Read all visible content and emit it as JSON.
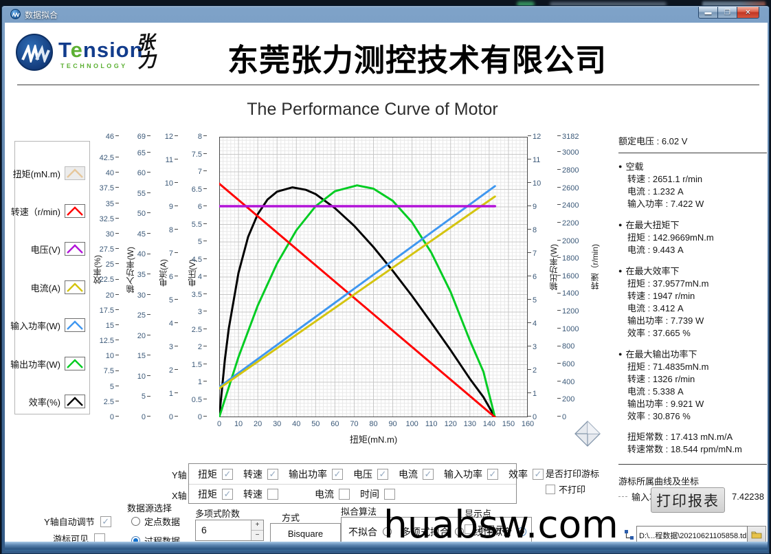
{
  "window": {
    "title": "数据拟合"
  },
  "header": {
    "brand": "Tensi",
    "brand_green_e": "e",
    "brand_tail": "nsion",
    "brand_display": "Tension",
    "brand_sub": "TECHNOLOGY",
    "brand_cn": "张力",
    "company": "东莞张力测控技术有限公司"
  },
  "chart_data": {
    "type": "line",
    "title": "The Performance Curve of Motor",
    "xlabel": "扭矩(mN.m)",
    "xlim": [
      0,
      160
    ],
    "x_ticks": [
      0,
      10,
      20,
      30,
      40,
      50,
      60,
      70,
      80,
      90,
      100,
      110,
      120,
      130,
      140,
      150,
      160
    ],
    "grid": true,
    "legend_position": "left",
    "axes": [
      {
        "id": "eff",
        "label": "效率(%)",
        "side": "left",
        "max": 46,
        "ticks": [
          46,
          42.5,
          40,
          37.5,
          35,
          32.5,
          30,
          27.5,
          25,
          22.5,
          20,
          17.5,
          15,
          12.5,
          10,
          7.5,
          5,
          2.5,
          0
        ]
      },
      {
        "id": "pin",
        "label": "输入功率(W)",
        "side": "left",
        "max": 69,
        "ticks": [
          69,
          65,
          60,
          55,
          50,
          45,
          40,
          35,
          30,
          25,
          20,
          15,
          10,
          5,
          0
        ]
      },
      {
        "id": "cur",
        "label": "电流(A)",
        "side": "left",
        "max": 12,
        "ticks": [
          12,
          11,
          10,
          9,
          8,
          7,
          6,
          5,
          4,
          3,
          2,
          1,
          0
        ]
      },
      {
        "id": "volt",
        "label": "电压(V)",
        "side": "left",
        "max": 8,
        "ticks": [
          8,
          7.5,
          7,
          6.5,
          6,
          5.5,
          5,
          4.5,
          4,
          3.5,
          3,
          2.5,
          2,
          1.5,
          1,
          0.5,
          0
        ]
      },
      {
        "id": "pout",
        "label": "输出功率(W)",
        "side": "right",
        "max": 12,
        "ticks": [
          12,
          11,
          10,
          9,
          8,
          7,
          6,
          5,
          4,
          3,
          2,
          1,
          0
        ]
      },
      {
        "id": "speed",
        "label": "转速（r/min)",
        "side": "right",
        "max": 3182,
        "ticks": [
          3182,
          3000,
          2800,
          2600,
          2400,
          2200,
          2000,
          1800,
          1600,
          1400,
          1200,
          1000,
          800,
          600,
          400,
          200,
          0
        ]
      }
    ],
    "series": [
      {
        "name": "效率",
        "axis": "eff",
        "color": "#000000",
        "width": 3,
        "points": [
          [
            0,
            0
          ],
          [
            3,
            9.6
          ],
          [
            5,
            14.6
          ],
          [
            10,
            23.7
          ],
          [
            15,
            29.6
          ],
          [
            20,
            33.3
          ],
          [
            25,
            35.7
          ],
          [
            30,
            37.0
          ],
          [
            38,
            37.7
          ],
          [
            45,
            37.3
          ],
          [
            50,
            36.6
          ],
          [
            60,
            34.3
          ],
          [
            70,
            31.4
          ],
          [
            80,
            27.9
          ],
          [
            90,
            24.0
          ],
          [
            100,
            19.9
          ],
          [
            110,
            15.5
          ],
          [
            120,
            11.0
          ],
          [
            130,
            6.3
          ],
          [
            137,
            3.3
          ],
          [
            143,
            0
          ]
        ]
      },
      {
        "name": "输出功率",
        "axis": "pout",
        "color": "#00cc22",
        "width": 3,
        "points": [
          [
            0,
            0
          ],
          [
            10,
            2.58
          ],
          [
            20,
            4.78
          ],
          [
            30,
            6.58
          ],
          [
            40,
            8.0
          ],
          [
            50,
            9.03
          ],
          [
            60,
            9.67
          ],
          [
            71.5,
            9.92
          ],
          [
            80,
            9.78
          ],
          [
            90,
            9.26
          ],
          [
            100,
            8.34
          ],
          [
            110,
            7.04
          ],
          [
            120,
            5.36
          ],
          [
            130,
            3.28
          ],
          [
            137,
            1.95
          ],
          [
            143,
            0
          ]
        ]
      },
      {
        "name": "转速",
        "axis": "speed",
        "color": "#ff0000",
        "width": 3,
        "points": [
          [
            0,
            2651.1
          ],
          [
            143,
            0
          ]
        ]
      },
      {
        "name": "输入功率",
        "axis": "pin",
        "color": "#3f97f0",
        "width": 3,
        "points": [
          [
            0,
            7.42
          ],
          [
            143,
            56.85
          ]
        ]
      },
      {
        "name": "电流",
        "axis": "cur",
        "color": "#d4c410",
        "width": 3,
        "points": [
          [
            0,
            1.232
          ],
          [
            143,
            9.443
          ]
        ]
      },
      {
        "name": "电压",
        "axis": "volt",
        "color": "#b214d8",
        "width": 3.5,
        "points": [
          [
            0,
            6.02
          ],
          [
            143,
            6.02
          ]
        ]
      }
    ]
  },
  "legend": {
    "items": [
      {
        "label": "扭矩(mN.m)",
        "color": "#e6c79b",
        "disabled": true
      },
      {
        "label": "转速（r/min)",
        "color": "#ff0000",
        "disabled": false
      },
      {
        "label": "电压(V)",
        "color": "#b214d8",
        "disabled": false
      },
      {
        "label": "电流(A)",
        "color": "#d4c410",
        "disabled": false
      },
      {
        "label": "输入功率(W)",
        "color": "#3f97f0",
        "disabled": false
      },
      {
        "label": "输出功率(W)",
        "color": "#00cc22",
        "disabled": false
      },
      {
        "label": "效率(%)",
        "color": "#000000",
        "disabled": false
      }
    ]
  },
  "stats": {
    "rated": "额定电压 : 6.02 V",
    "sections": [
      {
        "bullet": true,
        "title": "空载",
        "lines": [
          "转速 : 2651.1 r/min",
          "电流 : 1.232 A",
          "输入功率 : 7.422 W"
        ]
      },
      {
        "bullet": true,
        "title": "在最大扭矩下",
        "lines": [
          "扭矩 : 142.9669mN.m",
          "电流 : 9.443 A"
        ]
      },
      {
        "bullet": true,
        "title": "在最大效率下",
        "lines": [
          "扭矩 : 37.9577mN.m",
          "转速 : 1947  r/min",
          "电流 : 3.412 A",
          "输出功率 : 7.739 W",
          "效率 : 37.665 %"
        ]
      },
      {
        "bullet": true,
        "title": "在最大输出功率下",
        "lines": [
          "扭矩 : 71.4835mN.m",
          "转速 : 1326  r/min",
          "电流 : 5.338 A",
          "输出功率 : 9.921 W",
          "效率 : 30.876 %"
        ]
      },
      {
        "bullet": false,
        "title": "",
        "lines": [
          "扭矩常数 : 17.413 mN.m/A",
          "转速常数 : 18.544 rpm/mN.m"
        ]
      }
    ],
    "cursor_panel": {
      "title": "游标所属曲线及坐标",
      "curve": "输入功率(W)",
      "x": "0",
      "y": "7.42238"
    }
  },
  "controls": {
    "y_row": {
      "label": "Y轴",
      "items": [
        {
          "label": "扭矩",
          "checked": true
        },
        {
          "label": "转速",
          "checked": true
        },
        {
          "label": "输出功率",
          "checked": true
        },
        {
          "label": "电压",
          "checked": true
        },
        {
          "label": "电流",
          "checked": true
        },
        {
          "label": "输入功率",
          "checked": true
        },
        {
          "label": "效率",
          "checked": true
        }
      ]
    },
    "x_row": {
      "label": "X轴",
      "items": [
        {
          "label": "扭矩",
          "checked": true
        },
        {
          "label": "转速",
          "checked": false
        },
        {
          "label": "电流",
          "checked": false
        },
        {
          "label": "时间",
          "checked": false
        }
      ]
    },
    "print_cursor": {
      "label": "是否打印游标",
      "option": "不打印",
      "checked": false
    },
    "y_auto": {
      "label": "Y轴自动调节",
      "checked": true
    },
    "cursor_visible": {
      "label": "游标可见",
      "checked": false
    },
    "data_source": {
      "label": "数据源选择",
      "options": [
        {
          "label": "定点数据",
          "selected": false
        },
        {
          "label": "过程数据",
          "selected": true
        }
      ]
    },
    "poly_order": {
      "label": "多项式阶数",
      "value": "6"
    },
    "method": {
      "label": "方式",
      "value": "Bisquare"
    },
    "fit_algo": {
      "label": "拟合算法",
      "options": [
        {
          "label": "不拟合",
          "selected": false
        },
        {
          "label": "多项式拟合",
          "selected": false
        },
        {
          "label": "线性拟合",
          "selected": true
        }
      ]
    },
    "show_points": {
      "label": "显示点",
      "option": "不显示",
      "checked": false
    },
    "print_report": "打印报表"
  },
  "file_bar": {
    "path": "D:\\...程数据\\20210621105858.tdms"
  },
  "watermark": "huabsw.com"
}
